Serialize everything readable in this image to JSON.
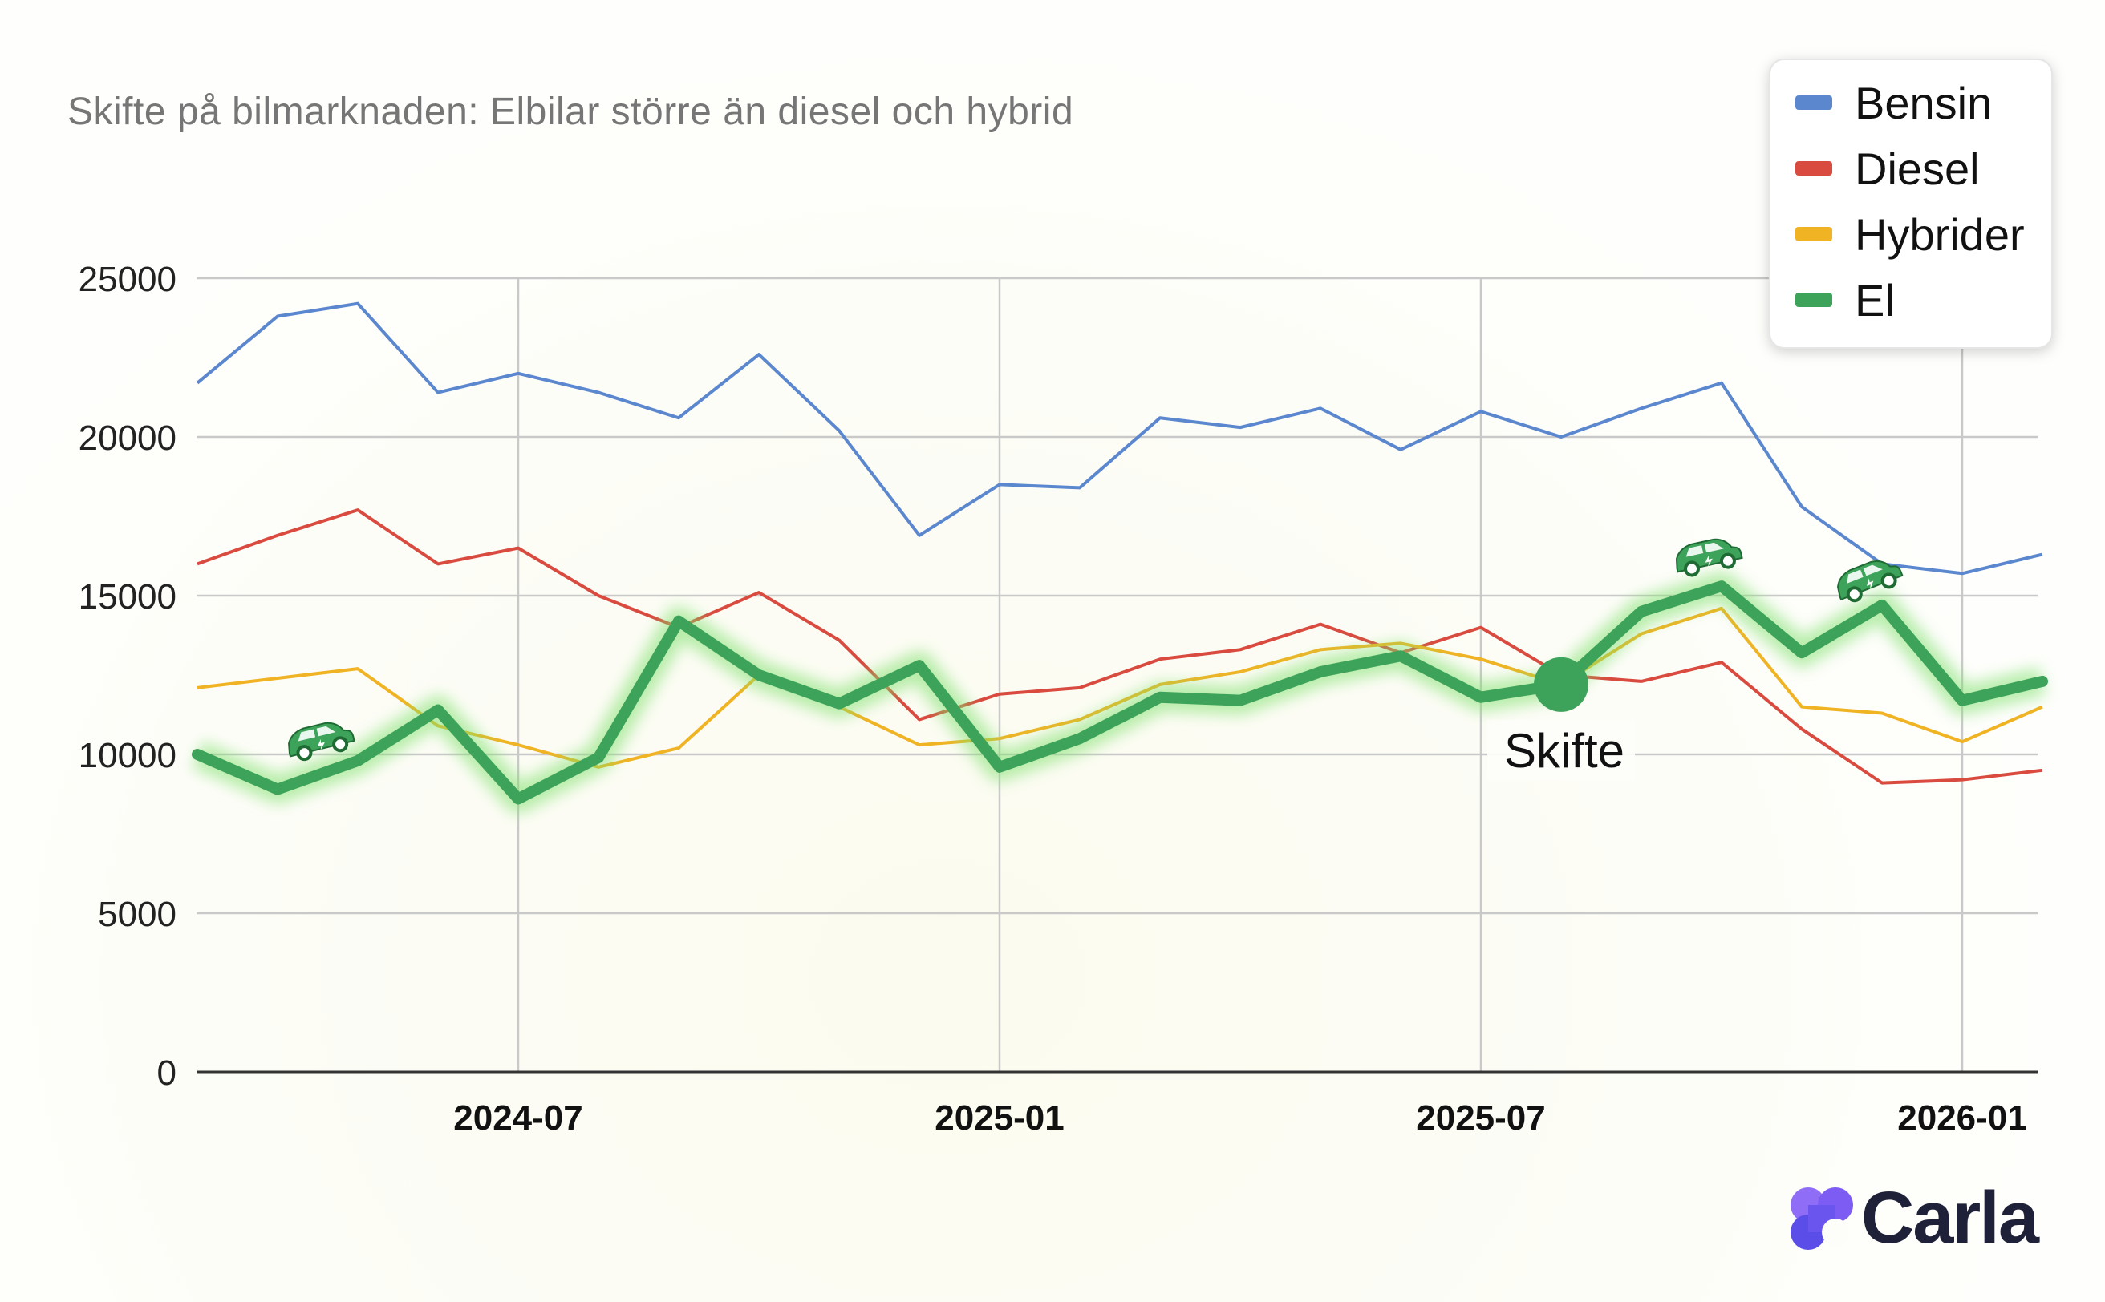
{
  "chart_data": {
    "type": "line",
    "title": "Skifte på bilmarknaden: Elbilar större än diesel och hybrid",
    "xlabel": "",
    "ylabel": "",
    "ylim": [
      0,
      25000
    ],
    "yticks": [
      "0",
      "5000",
      "10000",
      "15000",
      "20000",
      "25000"
    ],
    "xticks": [
      {
        "label": "2024-07",
        "month_index": 4
      },
      {
        "label": "2025-01",
        "month_index": 10
      },
      {
        "label": "2025-07",
        "month_index": 16
      },
      {
        "label": "2026-01",
        "month_index": 22
      }
    ],
    "x": [
      "2024-03",
      "2024-04",
      "2024-05",
      "2024-06",
      "2024-07",
      "2024-08",
      "2024-09",
      "2024-10",
      "2024-11",
      "2024-12",
      "2025-01",
      "2025-02",
      "2025-03",
      "2025-04",
      "2025-05",
      "2025-06",
      "2025-07",
      "2025-08",
      "2025-09",
      "2025-10",
      "2025-11",
      "2025-12",
      "2026-01",
      "2026-02"
    ],
    "grid": true,
    "legend_position": "top-right",
    "series": [
      {
        "name": "Bensin",
        "color": "#5b87cf",
        "values": [
          21700,
          23800,
          24200,
          21400,
          22000,
          21400,
          20600,
          22600,
          20200,
          16900,
          18500,
          18400,
          20600,
          20300,
          20900,
          19600,
          20800,
          20000,
          20900,
          21700,
          17800,
          16000,
          15700,
          16300
        ]
      },
      {
        "name": "Diesel",
        "color": "#d94a3f",
        "values": [
          16000,
          16900,
          17700,
          16000,
          16500,
          15000,
          14000,
          15100,
          13600,
          11100,
          11900,
          12100,
          13000,
          13300,
          14100,
          13200,
          14000,
          12500,
          12300,
          12900,
          10800,
          9100,
          9200,
          9500
        ]
      },
      {
        "name": "Hybrider",
        "color": "#f0b324",
        "values": [
          12100,
          12400,
          12700,
          10900,
          10300,
          9600,
          10200,
          12500,
          11500,
          10300,
          10500,
          11100,
          12200,
          12600,
          13300,
          13500,
          13000,
          12200,
          13800,
          14600,
          11500,
          11300,
          10400,
          11500
        ]
      },
      {
        "name": "El",
        "color": "#3ea35a",
        "values": [
          10000,
          8900,
          9800,
          11400,
          8600,
          9900,
          14200,
          12500,
          11600,
          12800,
          9600,
          10500,
          11800,
          11700,
          12600,
          13100,
          11800,
          12200,
          14500,
          15300,
          13200,
          14700,
          11700,
          12300
        ]
      }
    ],
    "annotations": [
      {
        "text": "Skifte",
        "series": "El",
        "month_index": 17
      }
    ],
    "car_icons": [
      {
        "series": "El",
        "month_index": 1.5
      },
      {
        "series": "El",
        "month_index": 18.8
      },
      {
        "series": "El",
        "month_index": 20.8
      }
    ]
  },
  "brand": {
    "name": "Carla",
    "mark_color_top": "#8f6df6",
    "mark_color_bottom": "#4f46e5"
  }
}
